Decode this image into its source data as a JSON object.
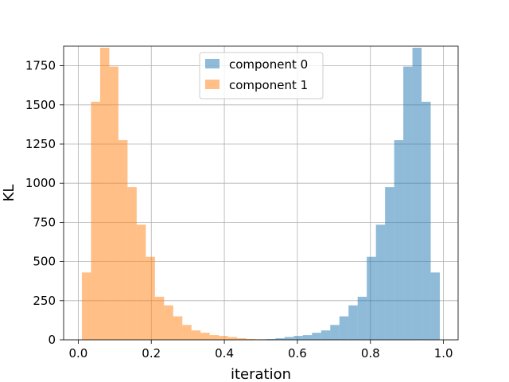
{
  "chart_data": {
    "type": "bar",
    "subtype": "histogram",
    "title": "",
    "xlabel": "iteration",
    "ylabel": "KL",
    "xlim": [
      -0.04,
      1.04
    ],
    "ylim": [
      0,
      1875
    ],
    "xticks": [
      0.0,
      0.2,
      0.4,
      0.6,
      0.8,
      1.0
    ],
    "xtick_labels": [
      "0.0",
      "0.2",
      "0.4",
      "0.6",
      "0.8",
      "1.0"
    ],
    "yticks": [
      0,
      250,
      500,
      750,
      1000,
      1250,
      1500,
      1750
    ],
    "ytick_labels": [
      "0",
      "250",
      "500",
      "750",
      "1000",
      "1250",
      "1500",
      "1750"
    ],
    "grid": true,
    "legend_position": "top-center",
    "bin_width": 0.025,
    "series": [
      {
        "name": "component 0",
        "color": "#1f77b4",
        "alpha": 0.5,
        "bins_start": [
          0.49,
          0.515,
          0.54,
          0.565,
          0.59,
          0.615,
          0.64,
          0.665,
          0.69,
          0.715,
          0.74,
          0.765,
          0.79,
          0.815,
          0.84,
          0.865,
          0.89,
          0.915,
          0.94,
          0.965
        ],
        "values": [
          3,
          5,
          10,
          18,
          25,
          30,
          45,
          60,
          95,
          150,
          220,
          275,
          530,
          735,
          975,
          1275,
          1745,
          1865,
          1520,
          430
        ]
      },
      {
        "name": "component 1",
        "color": "#ff7f0e",
        "alpha": 0.5,
        "bins_start": [
          0.01,
          0.035,
          0.06,
          0.085,
          0.11,
          0.135,
          0.16,
          0.185,
          0.21,
          0.235,
          0.26,
          0.285,
          0.31,
          0.335,
          0.36,
          0.385,
          0.41,
          0.435,
          0.46,
          0.485
        ],
        "values": [
          430,
          1520,
          1865,
          1745,
          1275,
          975,
          735,
          530,
          275,
          220,
          150,
          95,
          60,
          45,
          30,
          25,
          18,
          10,
          5,
          3
        ]
      }
    ]
  }
}
